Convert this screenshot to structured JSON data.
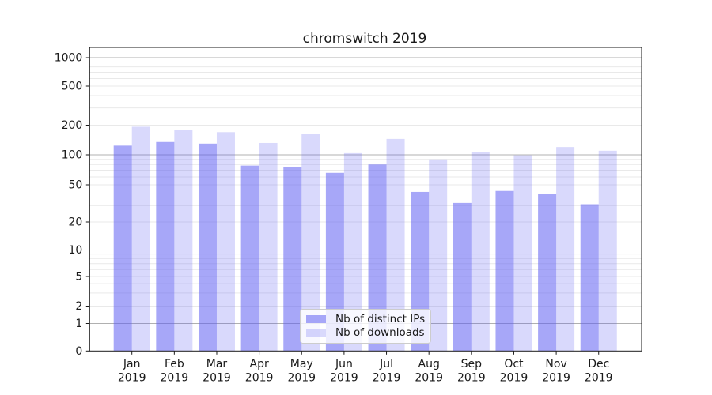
{
  "title": "chromswitch 2019",
  "chart_data": {
    "type": "bar",
    "title": "chromswitch 2019",
    "x_categories": [
      "Jan",
      "Feb",
      "Mar",
      "Apr",
      "May",
      "Jun",
      "Jul",
      "Aug",
      "Sep",
      "Oct",
      "Nov",
      "Dec"
    ],
    "x_year_label": "2019",
    "series": [
      {
        "name": "Nb of distinct IPs",
        "color": "#5d5df2",
        "alpha": 0.54,
        "values": [
          124,
          135,
          130,
          78,
          76,
          66,
          80,
          42,
          32,
          43,
          40,
          31
        ]
      },
      {
        "name": "Nb of downloads",
        "color": "#5d5df2",
        "alpha": 0.235,
        "values": [
          193,
          178,
          170,
          132,
          162,
          104,
          145,
          90,
          106,
          99,
          120,
          110
        ]
      }
    ],
    "y_scale": "symlog",
    "y_ticks": [
      0,
      1,
      2,
      5,
      10,
      20,
      50,
      100,
      200,
      500,
      1000
    ],
    "ylim": [
      0,
      1400
    ],
    "grid": true,
    "legend_position": "lower center",
    "colors": {
      "major_gridline": "#b0b0b0",
      "minor_gridline": "#e9e9e9",
      "axis": "#1a1a1a"
    }
  }
}
